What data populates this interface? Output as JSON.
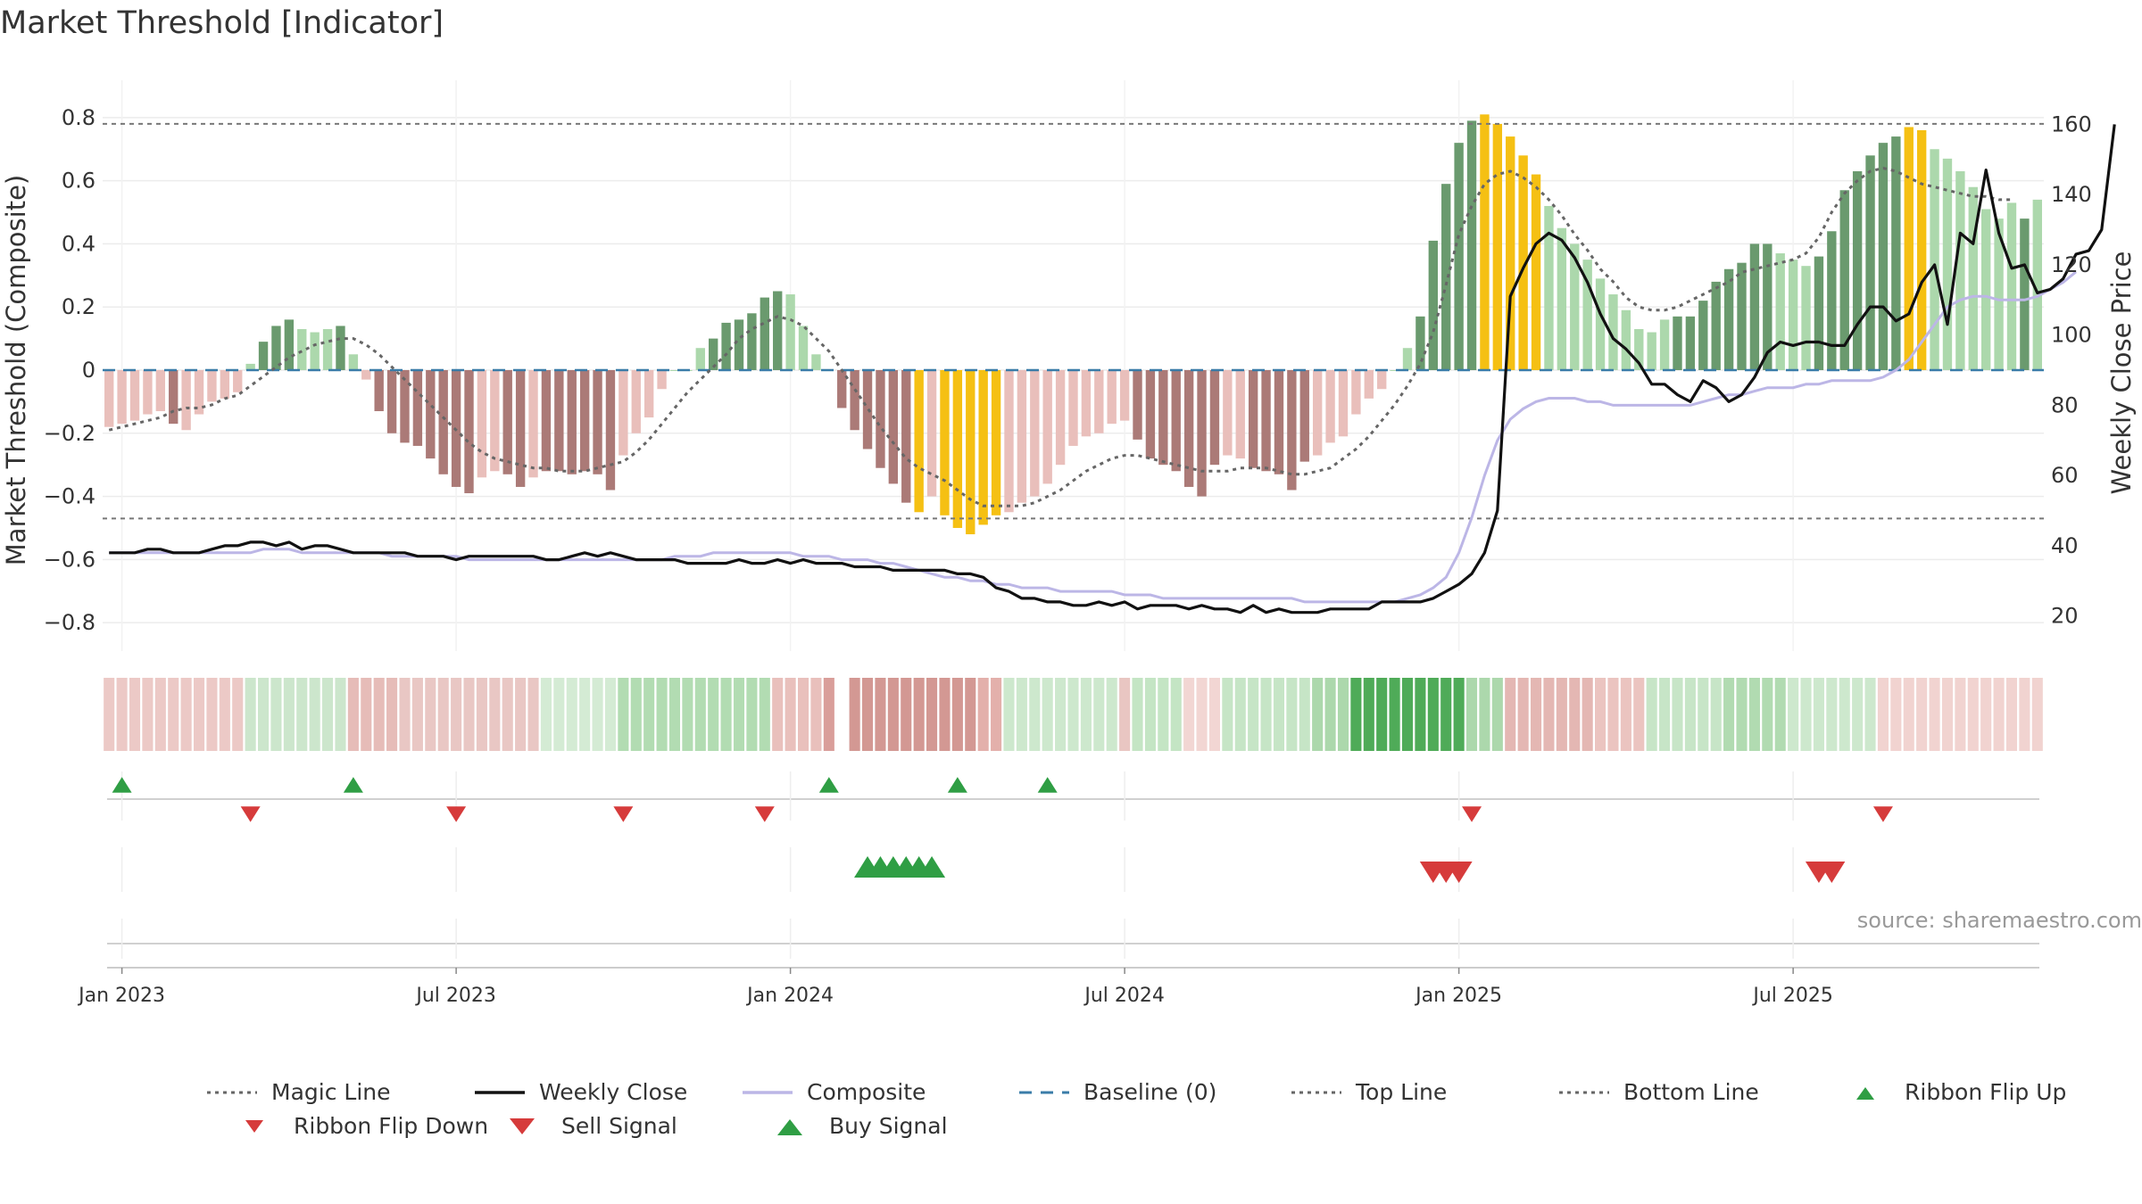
{
  "title": "Market Threshold [Indicator]",
  "source": "source: sharemaestro.com",
  "chart_data": {
    "type": "bar",
    "ylabel_left": "Market Threshold (Composite)",
    "ylabel_right": "Weekly Close Price",
    "ylim_left": [
      -0.89,
      0.89
    ],
    "ylim_right": [
      10,
      170
    ],
    "yticks_left": [
      0.8,
      0.6,
      0.4,
      0.2,
      0,
      -0.2,
      -0.4,
      -0.6,
      -0.8
    ],
    "yticks_left_labels": [
      "0.8",
      "0.6",
      "0.4",
      "0.2",
      "0",
      "−0.2",
      "−0.4",
      "−0.6",
      "−0.8"
    ],
    "yticks_right": [
      160,
      140,
      120,
      100,
      80,
      60,
      40,
      20
    ],
    "xtick_labels": [
      "Jan 2023",
      "Jul 2023",
      "Jan 2024",
      "Jul 2024",
      "Jan 2025",
      "Jul 2025"
    ],
    "xtick_weeks": [
      1,
      27,
      53,
      79,
      105,
      131
    ],
    "top_line": 0.78,
    "bottom_line": -0.47,
    "colors": {
      "strong_green": "#6a9a6e",
      "light_green": "#acd8ac",
      "strong_red": "#ab7a77",
      "light_red": "#e9bfbb",
      "gold": "#f5c013",
      "close": "#111111",
      "composite": "#bcb6e6",
      "magic": "#666666",
      "baseline": "#3a7ca8",
      "up": "#2f9e44",
      "down": "#d63b3b"
    },
    "composite_bars": [
      -0.18,
      -0.17,
      -0.16,
      -0.14,
      -0.13,
      -0.17,
      -0.19,
      -0.14,
      -0.1,
      -0.09,
      -0.07,
      0.02,
      0.09,
      0.14,
      0.16,
      0.13,
      0.12,
      0.13,
      0.14,
      0.05,
      -0.03,
      -0.13,
      -0.2,
      -0.23,
      -0.24,
      -0.28,
      -0.33,
      -0.37,
      -0.39,
      -0.34,
      -0.32,
      -0.33,
      -0.37,
      -0.34,
      -0.32,
      -0.32,
      -0.33,
      -0.32,
      -0.33,
      -0.38,
      -0.27,
      -0.2,
      -0.15,
      -0.06,
      0.0,
      0.0,
      0.07,
      0.1,
      0.15,
      0.16,
      0.18,
      0.23,
      0.25,
      0.24,
      0.14,
      0.05,
      0.0,
      -0.12,
      -0.19,
      -0.25,
      -0.31,
      -0.36,
      -0.42,
      -0.45,
      -0.4,
      -0.46,
      -0.5,
      -0.52,
      -0.49,
      -0.46,
      -0.45,
      -0.42,
      -0.4,
      -0.36,
      -0.3,
      -0.24,
      -0.21,
      -0.2,
      -0.17,
      -0.16,
      -0.22,
      -0.28,
      -0.3,
      -0.32,
      -0.37,
      -0.4,
      -0.3,
      -0.27,
      -0.28,
      -0.31,
      -0.32,
      -0.33,
      -0.38,
      -0.29,
      -0.27,
      -0.23,
      -0.21,
      -0.14,
      -0.09,
      -0.06,
      0.0,
      0.07,
      0.17,
      0.41,
      0.59,
      0.72,
      0.79,
      0.81,
      0.78,
      0.74,
      0.68,
      0.62,
      0.52,
      0.45,
      0.4,
      0.35,
      0.29,
      0.24,
      0.19,
      0.13,
      0.12,
      0.16,
      0.17,
      0.17,
      0.22,
      0.28,
      0.32,
      0.34,
      0.4,
      0.4,
      0.37,
      0.35,
      0.33,
      0.36,
      0.44,
      0.57,
      0.63,
      0.68,
      0.72,
      0.74,
      0.77,
      0.76,
      0.7,
      0.67,
      0.63,
      0.58,
      0.51,
      0.48,
      0.53,
      0.48,
      0.54
    ],
    "bar_styles": [
      "lr",
      "lr",
      "lr",
      "lr",
      "lr",
      "sr",
      "lr",
      "lr",
      "lr",
      "lr",
      "lr",
      "lg",
      "sg",
      "sg",
      "sg",
      "lg",
      "lg",
      "lg",
      "sg",
      "lg",
      "lr",
      "sr",
      "sr",
      "sr",
      "sr",
      "sr",
      "sr",
      "sr",
      "sr",
      "lr",
      "lr",
      "sr",
      "sr",
      "lr",
      "sr",
      "sr",
      "sr",
      "sr",
      "sr",
      "sr",
      "lr",
      "lr",
      "lr",
      "lr",
      "lg",
      "lg",
      "lg",
      "sg",
      "sg",
      "sg",
      "sg",
      "sg",
      "sg",
      "lg",
      "lg",
      "lg",
      "lr",
      "sr",
      "sr",
      "sr",
      "sr",
      "sr",
      "sr",
      "go",
      "lr",
      "go",
      "go",
      "go",
      "go",
      "go",
      "lr",
      "lr",
      "lr",
      "lr",
      "lr",
      "lr",
      "lr",
      "lr",
      "lr",
      "lr",
      "sr",
      "sr",
      "sr",
      "sr",
      "sr",
      "sr",
      "sr",
      "lr",
      "lr",
      "sr",
      "sr",
      "sr",
      "sr",
      "sr",
      "lr",
      "lr",
      "lr",
      "lr",
      "lr",
      "lr",
      "lg",
      "lg",
      "sg",
      "sg",
      "sg",
      "sg",
      "sg",
      "go",
      "go",
      "go",
      "go",
      "go",
      "lg",
      "lg",
      "lg",
      "lg",
      "lg",
      "lg",
      "lg",
      "lg",
      "lg",
      "lg",
      "sg",
      "sg",
      "sg",
      "sg",
      "sg",
      "sg",
      "sg",
      "sg",
      "lg",
      "lg",
      "lg",
      "sg",
      "sg",
      "sg",
      "sg",
      "sg",
      "sg",
      "sg",
      "go",
      "go",
      "lg",
      "lg",
      "lg",
      "lg",
      "lg",
      "lg",
      "lg",
      "sg",
      "lg",
      "sg"
    ],
    "weekly_close": [
      38,
      38,
      38,
      39,
      39,
      38,
      38,
      38,
      39,
      40,
      40,
      41,
      41,
      40,
      41,
      39,
      40,
      40,
      39,
      38,
      38,
      38,
      38,
      38,
      37,
      37,
      37,
      36,
      37,
      37,
      37,
      37,
      37,
      37,
      36,
      36,
      37,
      38,
      37,
      38,
      37,
      36,
      36,
      36,
      36,
      35,
      35,
      35,
      35,
      36,
      35,
      35,
      36,
      35,
      36,
      35,
      35,
      35,
      34,
      34,
      34,
      33,
      33,
      33,
      33,
      33,
      32,
      32,
      31,
      28,
      27,
      25,
      25,
      24,
      24,
      23,
      23,
      24,
      23,
      24,
      22,
      23,
      23,
      23,
      22,
      23,
      22,
      22,
      21,
      23,
      21,
      22,
      21,
      21,
      21,
      22,
      22,
      22,
      22,
      24,
      24,
      24,
      24,
      25,
      27,
      29,
      32,
      38,
      50,
      111,
      119,
      126,
      129,
      127,
      122,
      115,
      106,
      99,
      96,
      92,
      86,
      86,
      83,
      81,
      87,
      85,
      81,
      83,
      88,
      95,
      98,
      97,
      98,
      98,
      97,
      97,
      103,
      108,
      108,
      104,
      106,
      115,
      120,
      103,
      129,
      126,
      147,
      129,
      119,
      120,
      112,
      113,
      116,
      123,
      124,
      130,
      160
    ],
    "composite_line": [
      38,
      38,
      38,
      38,
      38,
      38,
      38,
      38,
      38,
      38,
      38,
      38,
      39,
      39,
      39,
      38,
      38,
      38,
      38,
      38,
      38,
      38,
      37,
      37,
      37,
      37,
      37,
      37,
      36,
      36,
      36,
      36,
      36,
      36,
      36,
      36,
      36,
      36,
      36,
      36,
      36,
      36,
      36,
      36,
      37,
      37,
      37,
      38,
      38,
      38,
      38,
      38,
      38,
      38,
      37,
      37,
      37,
      36,
      36,
      36,
      35,
      35,
      34,
      33,
      32,
      31,
      31,
      30,
      30,
      29,
      29,
      28,
      28,
      28,
      27,
      27,
      27,
      27,
      27,
      26,
      26,
      26,
      25,
      25,
      25,
      25,
      25,
      25,
      25,
      25,
      25,
      25,
      25,
      24,
      24,
      24,
      24,
      24,
      24,
      24,
      24,
      25,
      26,
      28,
      31,
      38,
      48,
      60,
      70,
      76,
      79,
      81,
      82,
      82,
      82,
      81,
      81,
      80,
      80,
      80,
      80,
      80,
      80,
      80,
      81,
      82,
      83,
      83,
      84,
      85,
      85,
      85,
      86,
      86,
      87,
      87,
      87,
      87,
      88,
      90,
      93,
      98,
      103,
      108,
      110,
      111,
      111,
      110,
      110,
      110,
      111,
      113,
      115,
      118
    ],
    "magic_line": [
      -0.19,
      -0.18,
      -0.17,
      -0.16,
      -0.15,
      -0.13,
      -0.12,
      -0.12,
      -0.11,
      -0.09,
      -0.08,
      -0.05,
      -0.02,
      0.01,
      0.04,
      0.06,
      0.08,
      0.09,
      0.1,
      0.1,
      0.08,
      0.05,
      0.01,
      -0.03,
      -0.07,
      -0.11,
      -0.15,
      -0.19,
      -0.23,
      -0.26,
      -0.28,
      -0.29,
      -0.3,
      -0.31,
      -0.31,
      -0.32,
      -0.32,
      -0.32,
      -0.31,
      -0.3,
      -0.29,
      -0.26,
      -0.22,
      -0.17,
      -0.12,
      -0.07,
      -0.03,
      0.01,
      0.05,
      0.1,
      0.13,
      0.15,
      0.17,
      0.16,
      0.14,
      0.1,
      0.06,
      0.0,
      -0.06,
      -0.12,
      -0.18,
      -0.23,
      -0.28,
      -0.31,
      -0.33,
      -0.35,
      -0.38,
      -0.41,
      -0.43,
      -0.43,
      -0.43,
      -0.43,
      -0.42,
      -0.4,
      -0.38,
      -0.35,
      -0.32,
      -0.3,
      -0.28,
      -0.27,
      -0.27,
      -0.28,
      -0.29,
      -0.3,
      -0.31,
      -0.32,
      -0.32,
      -0.32,
      -0.31,
      -0.31,
      -0.31,
      -0.32,
      -0.33,
      -0.33,
      -0.32,
      -0.31,
      -0.28,
      -0.25,
      -0.21,
      -0.16,
      -0.11,
      -0.05,
      0.02,
      0.12,
      0.27,
      0.43,
      0.52,
      0.59,
      0.62,
      0.63,
      0.61,
      0.58,
      0.54,
      0.49,
      0.43,
      0.38,
      0.32,
      0.28,
      0.23,
      0.2,
      0.19,
      0.19,
      0.2,
      0.22,
      0.24,
      0.26,
      0.28,
      0.31,
      0.32,
      0.33,
      0.34,
      0.35,
      0.37,
      0.42,
      0.5,
      0.56,
      0.6,
      0.63,
      0.64,
      0.63,
      0.61,
      0.59,
      0.58,
      0.57,
      0.56,
      0.55,
      0.55,
      0.54,
      0.54
    ],
    "ribbon": [
      [
        "#ecc9c6",
        1
      ],
      [
        "#cce6cc",
        11
      ],
      [
        "#e6bcb8",
        19
      ],
      [
        "#e9c7c4",
        23
      ],
      [
        "#d4ebd4",
        34
      ],
      [
        "#b2dcb2",
        40
      ],
      [
        "#e9c0bc",
        52
      ],
      [
        "#d99e9a",
        56
      ],
      [
        "#ffffff",
        57
      ],
      [
        "#d39893",
        58
      ],
      [
        "#e3b0ab",
        68
      ],
      [
        "#cde8cd",
        70
      ],
      [
        "#e9c6c2",
        79
      ],
      [
        "#c4e5c4",
        80
      ],
      [
        "#f2d6d3",
        84
      ],
      [
        "#c6e5c6",
        87
      ],
      [
        "#acd8ac",
        94
      ],
      [
        "#4fab58",
        97
      ],
      [
        "#acd8ac",
        106
      ],
      [
        "#e4b7b3",
        109
      ],
      [
        "#ebc4c0",
        116
      ],
      [
        "#c7e5c7",
        120
      ],
      [
        "#b1dbb1",
        126
      ],
      [
        "#cde8cd",
        131
      ],
      [
        "#f1d3d0",
        138
      ]
    ],
    "ribbon_flip_up": [
      1,
      19,
      56,
      66,
      73
    ],
    "ribbon_flip_down": [
      11,
      27,
      40,
      51,
      106,
      138
    ],
    "buy_signal": [
      59,
      60,
      61,
      62,
      63,
      64
    ],
    "sell_signal": [
      103,
      104,
      105,
      133,
      134
    ]
  },
  "legend": [
    {
      "label": "Magic Line",
      "icon": "dotted-line-icon"
    },
    {
      "label": "Weekly Close",
      "icon": "solid-line-icon"
    },
    {
      "label": "Composite",
      "icon": "lavender-line-icon"
    },
    {
      "label": "Baseline (0)",
      "icon": "dashed-line-icon"
    },
    {
      "label": "Top Line",
      "icon": "dotted-line-icon"
    },
    {
      "label": "Bottom Line",
      "icon": "dotted-line-icon"
    },
    {
      "label": "Ribbon Flip Up",
      "icon": "triangle-up-icon"
    },
    {
      "label": "Ribbon Flip Down",
      "icon": "triangle-down-icon"
    },
    {
      "label": "Sell Signal",
      "icon": "triangle-down-icon"
    },
    {
      "label": "Buy Signal",
      "icon": "triangle-up-icon"
    }
  ]
}
